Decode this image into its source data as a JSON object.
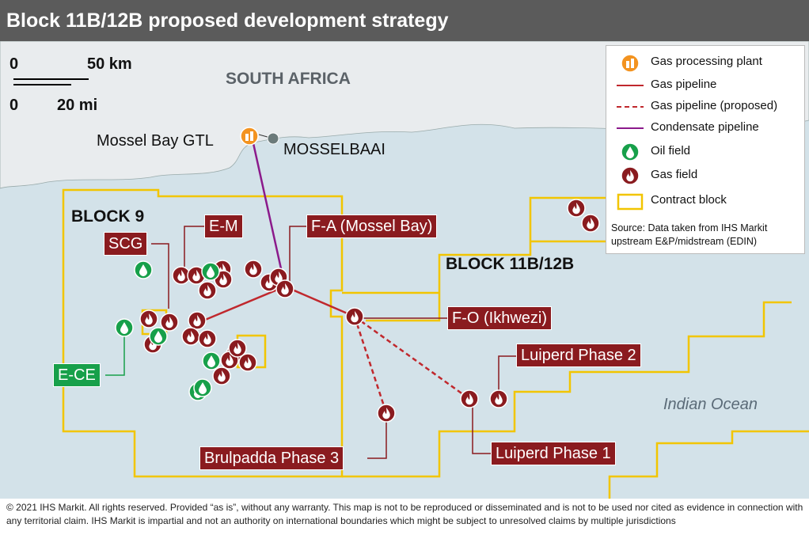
{
  "title": "Block 11B/12B proposed development strategy",
  "scale": {
    "km_zero": "0",
    "km": "50 km",
    "mi_zero": "0",
    "mi": "20 mi"
  },
  "regions": {
    "country": "SOUTH AFRICA",
    "ocean": "Indian Ocean",
    "block9": "BLOCK 9",
    "block11": "BLOCK 11B/12B"
  },
  "places": {
    "plant": "Mossel Bay GTL",
    "town": "MOSSELBAAI"
  },
  "fields": [
    "E-M",
    "SCG",
    "F-A (Mossel Bay)",
    "F-O (Ikhwezi)",
    "Luiperd Phase 2",
    "Luiperd Phase 1",
    "Brulpadda Phase 3",
    "E-CE"
  ],
  "legend": [
    "Gas processing plant",
    "Gas pipeline",
    "Gas pipeline (proposed)",
    "Condensate pipeline",
    "Oil field",
    "Gas field",
    "Contract block"
  ],
  "source": "Source: Data taken from IHS Markit upstream E&P/midstream (EDIN)",
  "footer": "© 2021 IHS Markit. All rights reserved. Provided “as is”, without any warranty. This map is not to be reproduced or disseminated and is not to be used nor cited as evidence in connection with any territorial claim. IHS Markit is impartial and not an authority on international boundaries which might be subject to unresolved claims by multiple jurisdictions"
}
